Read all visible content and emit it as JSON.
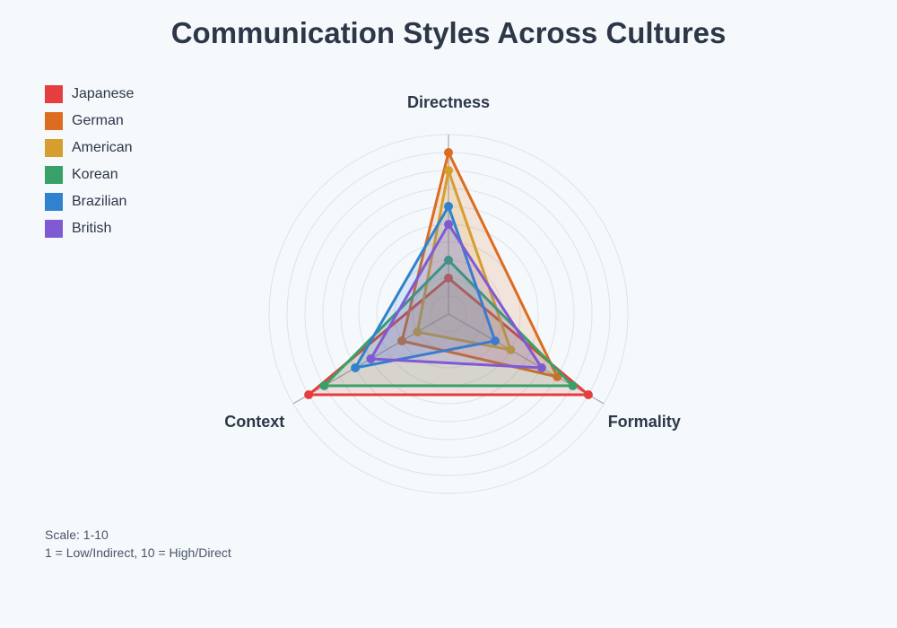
{
  "title": "Communication Styles Across Cultures",
  "notes": {
    "scale": "Scale: 1-10",
    "definition": "1 = Low/Indirect, 10 = High/Direct"
  },
  "chart_data": {
    "type": "radar",
    "title": "Communication Styles Across Cultures",
    "axes": [
      "Directness",
      "Formality",
      "Context"
    ],
    "range": [
      0,
      10
    ],
    "grid": true,
    "legend_position": "top-left",
    "series": [
      {
        "name": "Japanese",
        "color": "#e53e3e",
        "values": [
          2,
          9,
          9
        ]
      },
      {
        "name": "German",
        "color": "#dd6b20",
        "values": [
          9,
          7,
          3
        ]
      },
      {
        "name": "American",
        "color": "#d69e2e",
        "values": [
          8,
          4,
          2
        ]
      },
      {
        "name": "Korean",
        "color": "#38a169",
        "values": [
          3,
          8,
          8
        ]
      },
      {
        "name": "Brazilian",
        "color": "#3182ce",
        "values": [
          6,
          3,
          6
        ]
      },
      {
        "name": "British",
        "color": "#805ad5",
        "values": [
          5,
          6,
          5
        ]
      }
    ]
  }
}
